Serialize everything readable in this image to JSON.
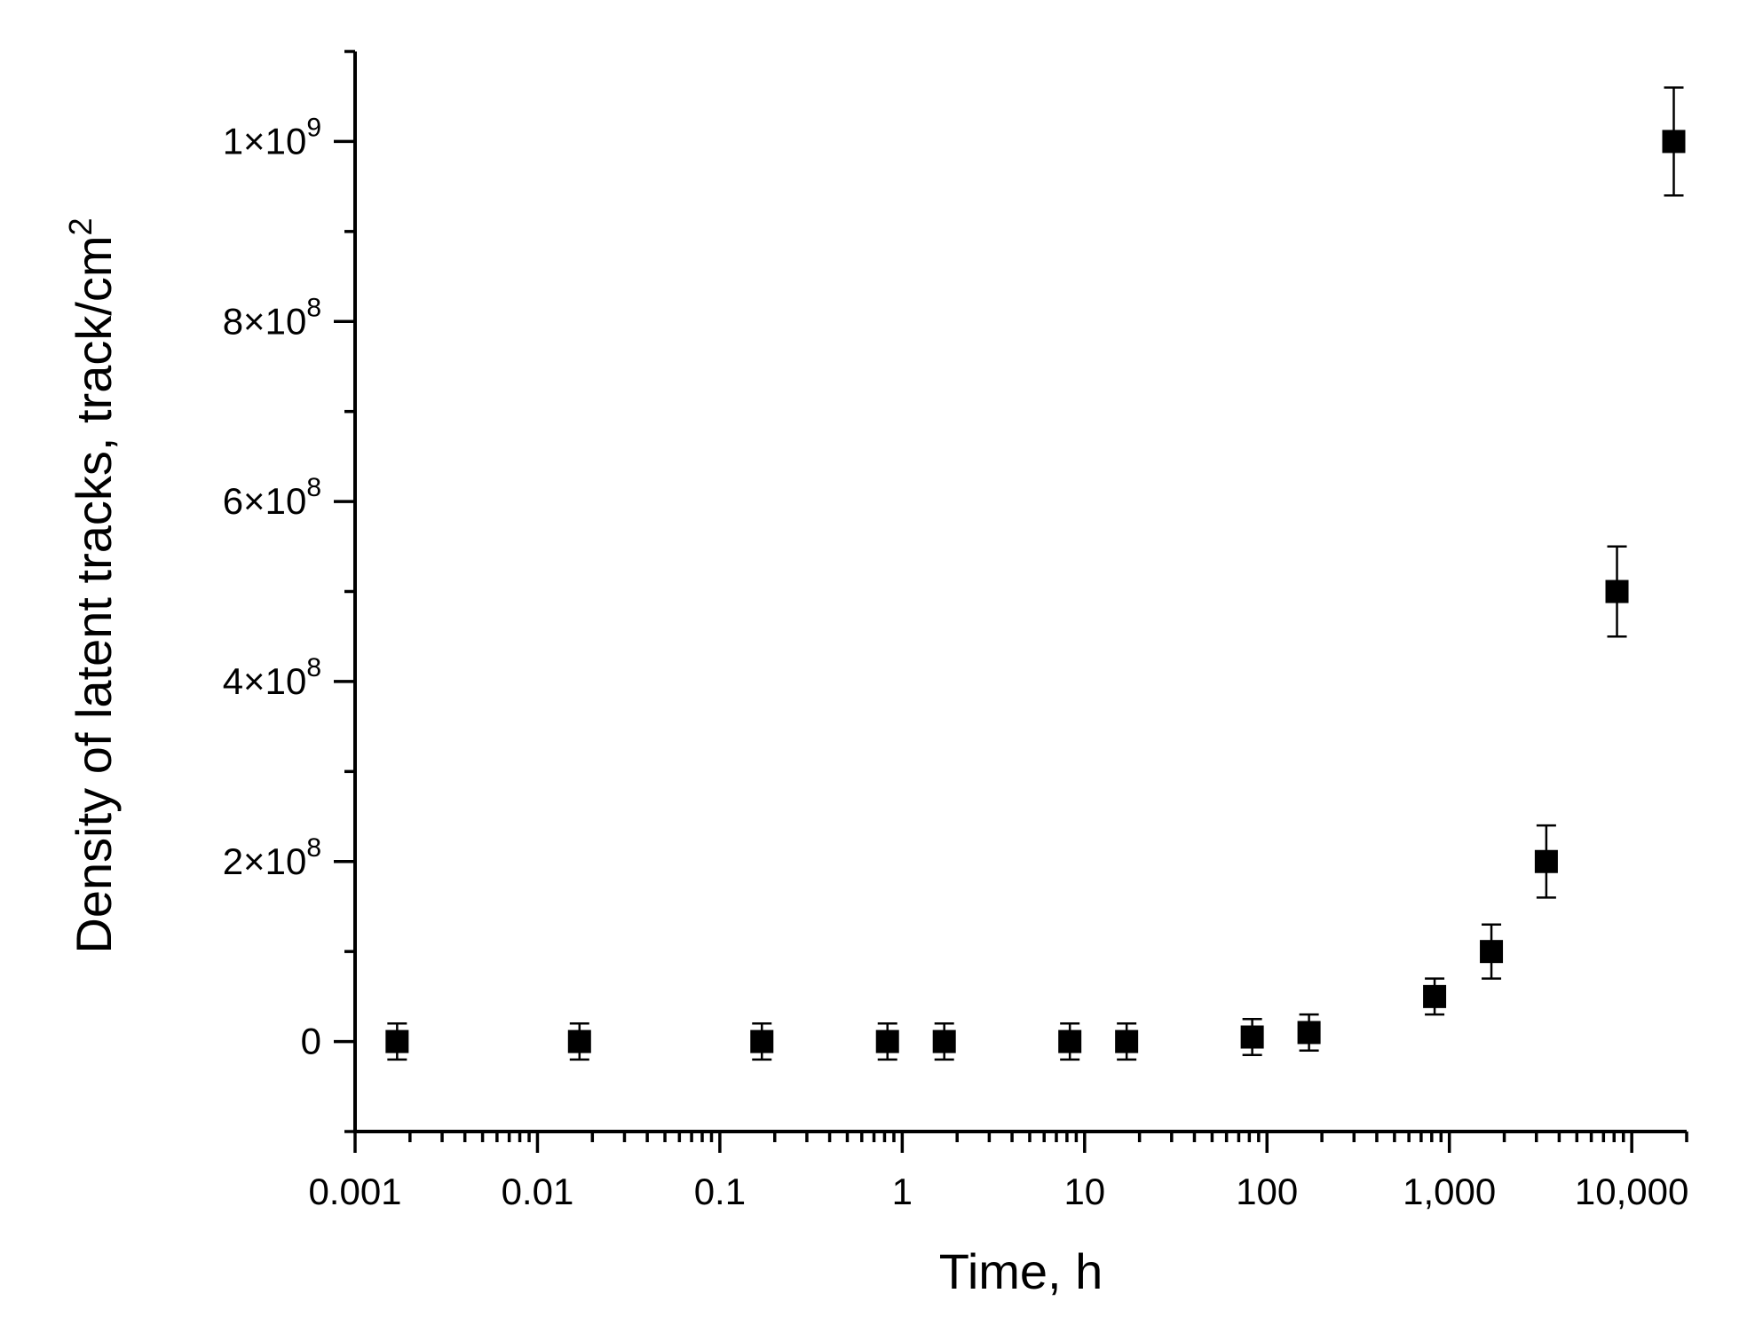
{
  "chart_data": {
    "type": "scatter",
    "title": "",
    "xlabel": "Time, h",
    "ylabel": "Density of latent tracks, track/cm",
    "ylabel_superscript": "2",
    "x_scale": "log",
    "xlim": [
      0.001,
      20000
    ],
    "ylim": [
      -100000000,
      1100000000
    ],
    "grid": false,
    "legend": "none",
    "x_ticks": [
      {
        "value": 0.001,
        "label": "0.001"
      },
      {
        "value": 0.01,
        "label": "0.01"
      },
      {
        "value": 0.1,
        "label": "0.1"
      },
      {
        "value": 1,
        "label": "1"
      },
      {
        "value": 10,
        "label": "10"
      },
      {
        "value": 100,
        "label": "100"
      },
      {
        "value": 1000,
        "label": "1,000"
      },
      {
        "value": 10000,
        "label": "10,000"
      }
    ],
    "y_ticks": [
      {
        "value": 0,
        "mantissa": "0",
        "exponent": ""
      },
      {
        "value": 200000000,
        "mantissa": "2×10",
        "exponent": "8"
      },
      {
        "value": 400000000,
        "mantissa": "4×10",
        "exponent": "8"
      },
      {
        "value": 600000000,
        "mantissa": "6×10",
        "exponent": "8"
      },
      {
        "value": 800000000,
        "mantissa": "8×10",
        "exponent": "8"
      },
      {
        "value": 1000000000,
        "mantissa": "1×10",
        "exponent": "9"
      }
    ],
    "series": [
      {
        "marker": "square",
        "color": "#000000",
        "points": [
          {
            "x": 0.0017,
            "y": 0,
            "err": 20000000
          },
          {
            "x": 0.017,
            "y": 0,
            "err": 20000000
          },
          {
            "x": 0.17,
            "y": 0,
            "err": 20000000
          },
          {
            "x": 0.83,
            "y": 0,
            "err": 20000000
          },
          {
            "x": 1.7,
            "y": 0,
            "err": 20000000
          },
          {
            "x": 8.3,
            "y": 0,
            "err": 20000000
          },
          {
            "x": 17,
            "y": 0,
            "err": 20000000
          },
          {
            "x": 83,
            "y": 5000000,
            "err": 20000000
          },
          {
            "x": 170,
            "y": 10000000,
            "err": 20000000
          },
          {
            "x": 830,
            "y": 50000000,
            "err": 20000000
          },
          {
            "x": 1700,
            "y": 100000000,
            "err": 30000000
          },
          {
            "x": 3400,
            "y": 200000000,
            "err": 40000000
          },
          {
            "x": 8300,
            "y": 500000000,
            "err": 50000000
          },
          {
            "x": 17000,
            "y": 1000000000,
            "err": 60000000
          }
        ]
      }
    ]
  }
}
